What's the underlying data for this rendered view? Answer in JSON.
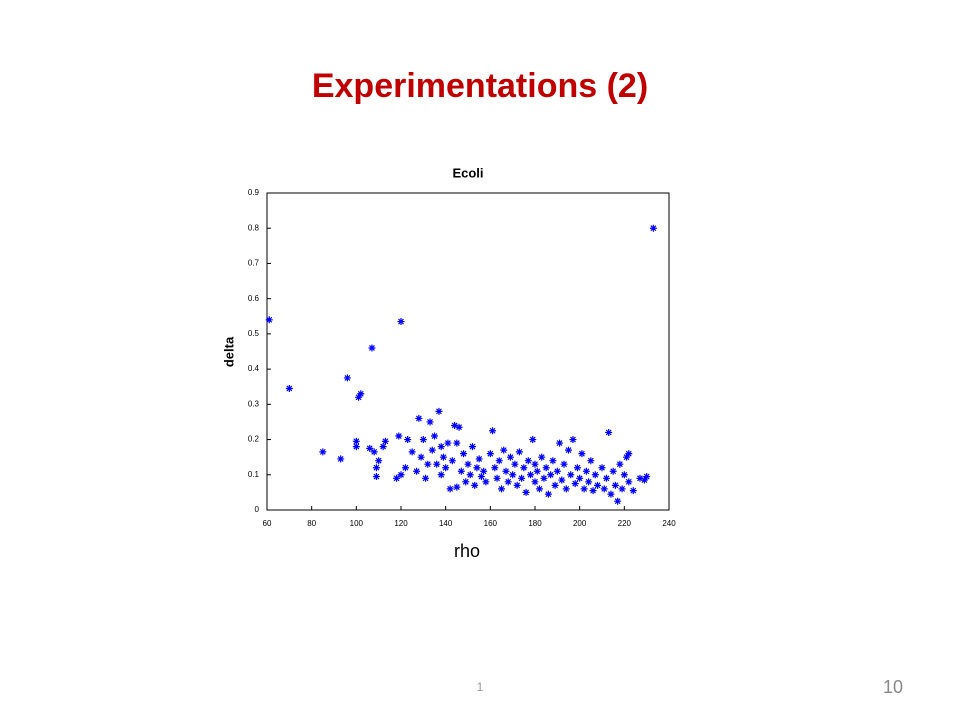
{
  "slide_title": "Experimentations (2)",
  "footer_number": "1",
  "page_number": "10",
  "chart_data": {
    "type": "scatter",
    "title": "Ecoli",
    "x_label": "rho",
    "y_label": "delta",
    "color": "#0000ff",
    "xlim": [
      60,
      240
    ],
    "xticks": [
      60,
      80,
      100,
      120,
      140,
      160,
      180,
      200,
      220,
      240
    ],
    "ylim": [
      0,
      0.9
    ],
    "yticks": [
      0,
      0.1,
      0.2,
      0.3,
      0.4,
      0.5,
      0.6,
      0.7,
      0.8,
      0.9
    ],
    "x": [
      61,
      70,
      85,
      93,
      96,
      100,
      100,
      101,
      102,
      107,
      120,
      233,
      106,
      108,
      109,
      109,
      110,
      112,
      113,
      118,
      119,
      120,
      122,
      123,
      125,
      127,
      128,
      129,
      130,
      131,
      132,
      133,
      134,
      135,
      136,
      137,
      138,
      138,
      139,
      140,
      141,
      142,
      143,
      144,
      145,
      145,
      146,
      147,
      148,
      149,
      150,
      151,
      152,
      153,
      154,
      155,
      156,
      157,
      158,
      160,
      161,
      162,
      163,
      164,
      165,
      166,
      167,
      168,
      169,
      170,
      171,
      172,
      173,
      174,
      175,
      176,
      177,
      178,
      179,
      180,
      180,
      181,
      182,
      183,
      184,
      185,
      186,
      187,
      188,
      189,
      190,
      191,
      192,
      193,
      194,
      195,
      196,
      197,
      198,
      199,
      200,
      201,
      202,
      203,
      204,
      205,
      206,
      207,
      208,
      210,
      211,
      212,
      213,
      214,
      215,
      216,
      217,
      218,
      219,
      220,
      221,
      222,
      222,
      224,
      227,
      229,
      230
    ],
    "values": [
      0.54,
      0.345,
      0.165,
      0.145,
      0.375,
      0.195,
      0.18,
      0.32,
      0.33,
      0.46,
      0.535,
      0.8,
      0.175,
      0.165,
      0.12,
      0.095,
      0.14,
      0.18,
      0.195,
      0.09,
      0.21,
      0.1,
      0.12,
      0.2,
      0.165,
      0.11,
      0.26,
      0.15,
      0.2,
      0.09,
      0.13,
      0.25,
      0.17,
      0.21,
      0.13,
      0.28,
      0.18,
      0.1,
      0.15,
      0.12,
      0.19,
      0.06,
      0.14,
      0.24,
      0.19,
      0.065,
      0.235,
      0.11,
      0.16,
      0.08,
      0.13,
      0.1,
      0.18,
      0.07,
      0.12,
      0.145,
      0.095,
      0.11,
      0.08,
      0.16,
      0.225,
      0.12,
      0.09,
      0.14,
      0.06,
      0.17,
      0.11,
      0.08,
      0.15,
      0.1,
      0.13,
      0.07,
      0.165,
      0.09,
      0.12,
      0.05,
      0.14,
      0.1,
      0.2,
      0.08,
      0.13,
      0.11,
      0.06,
      0.15,
      0.09,
      0.12,
      0.045,
      0.1,
      0.14,
      0.07,
      0.11,
      0.19,
      0.085,
      0.13,
      0.06,
      0.17,
      0.1,
      0.2,
      0.075,
      0.12,
      0.09,
      0.16,
      0.06,
      0.11,
      0.08,
      0.14,
      0.055,
      0.1,
      0.07,
      0.12,
      0.06,
      0.09,
      0.22,
      0.045,
      0.11,
      0.07,
      0.025,
      0.13,
      0.06,
      0.1,
      0.15,
      0.08,
      0.16,
      0.055,
      0.09,
      0.085,
      0.095
    ]
  }
}
